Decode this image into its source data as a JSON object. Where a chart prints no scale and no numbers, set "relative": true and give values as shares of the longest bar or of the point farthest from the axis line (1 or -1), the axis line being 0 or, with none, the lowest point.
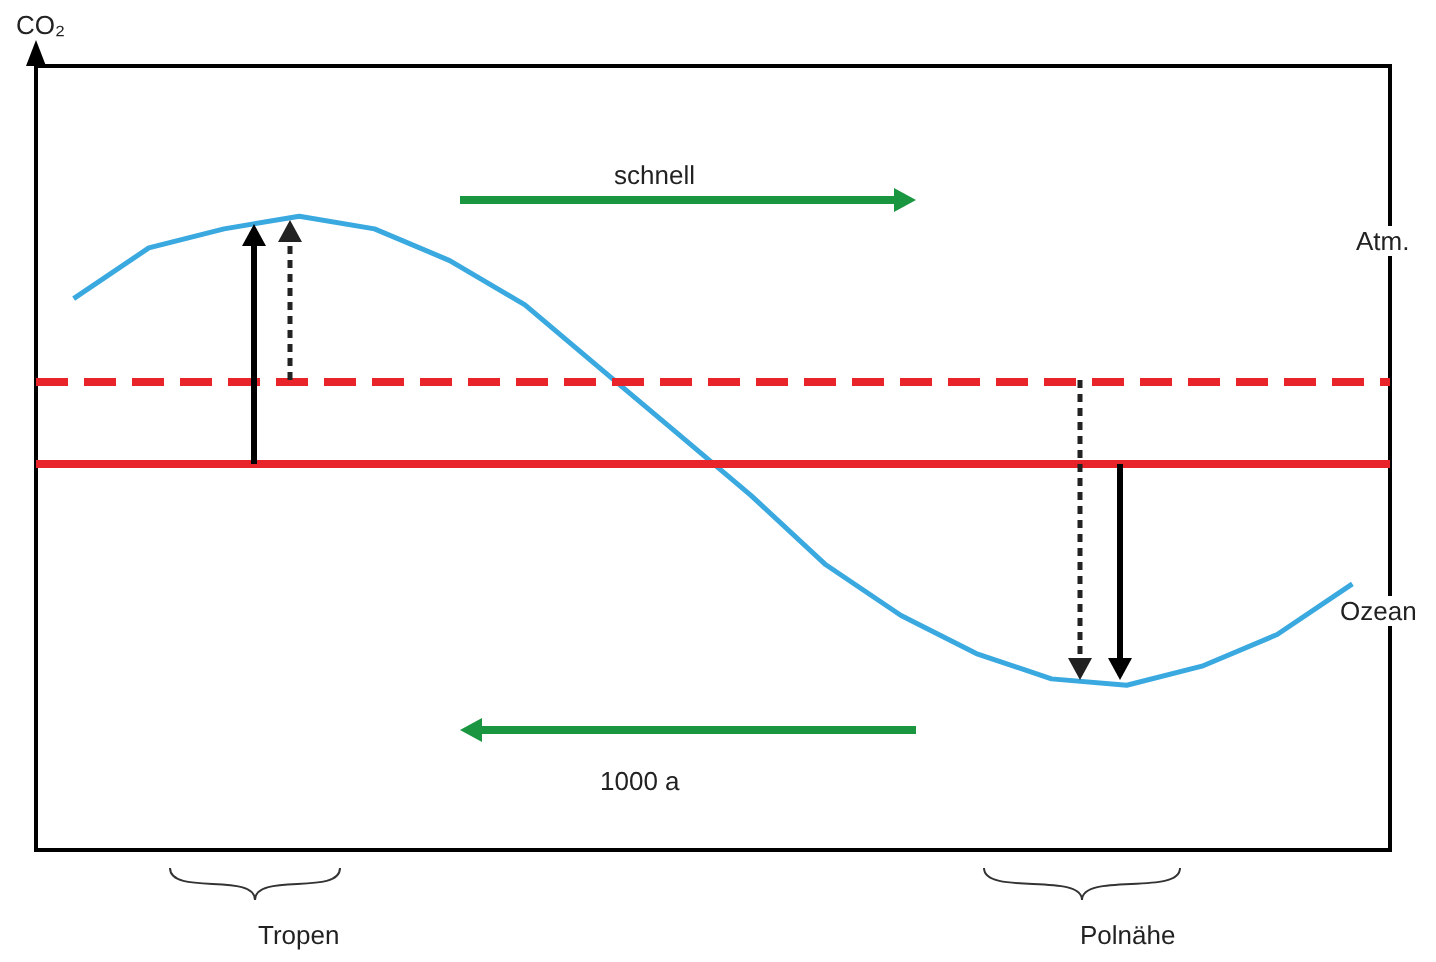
{
  "chart_data": {
    "type": "line",
    "relative": true,
    "categories": [
      null,
      null,
      null,
      null,
      null,
      null,
      null,
      null,
      null,
      null,
      null,
      null,
      null,
      null,
      null,
      null,
      null,
      null
    ],
    "series": [
      {
        "color": "#3aa9e0",
        "values": [
          0.87,
          0.95,
          0.98,
          1.0,
          0.98,
          0.93,
          0.86,
          0.76,
          0.66,
          0.56,
          0.45,
          0.37,
          0.31,
          0.27,
          0.26,
          0.29,
          0.34,
          0.42
        ]
      }
    ],
    "ref_lines": [
      {
        "axis": "y",
        "value": 0.74,
        "color": "#e8232a",
        "line_style": "dashed"
      },
      {
        "axis": "y",
        "value": 0.61,
        "color": "#e8232a",
        "line_style": "solid"
      }
    ],
    "annotations": [
      "schnell",
      "1000 a",
      "Atm.",
      "Ozean",
      "Tropen",
      "Polnähe",
      "CO₂"
    ]
  }
}
